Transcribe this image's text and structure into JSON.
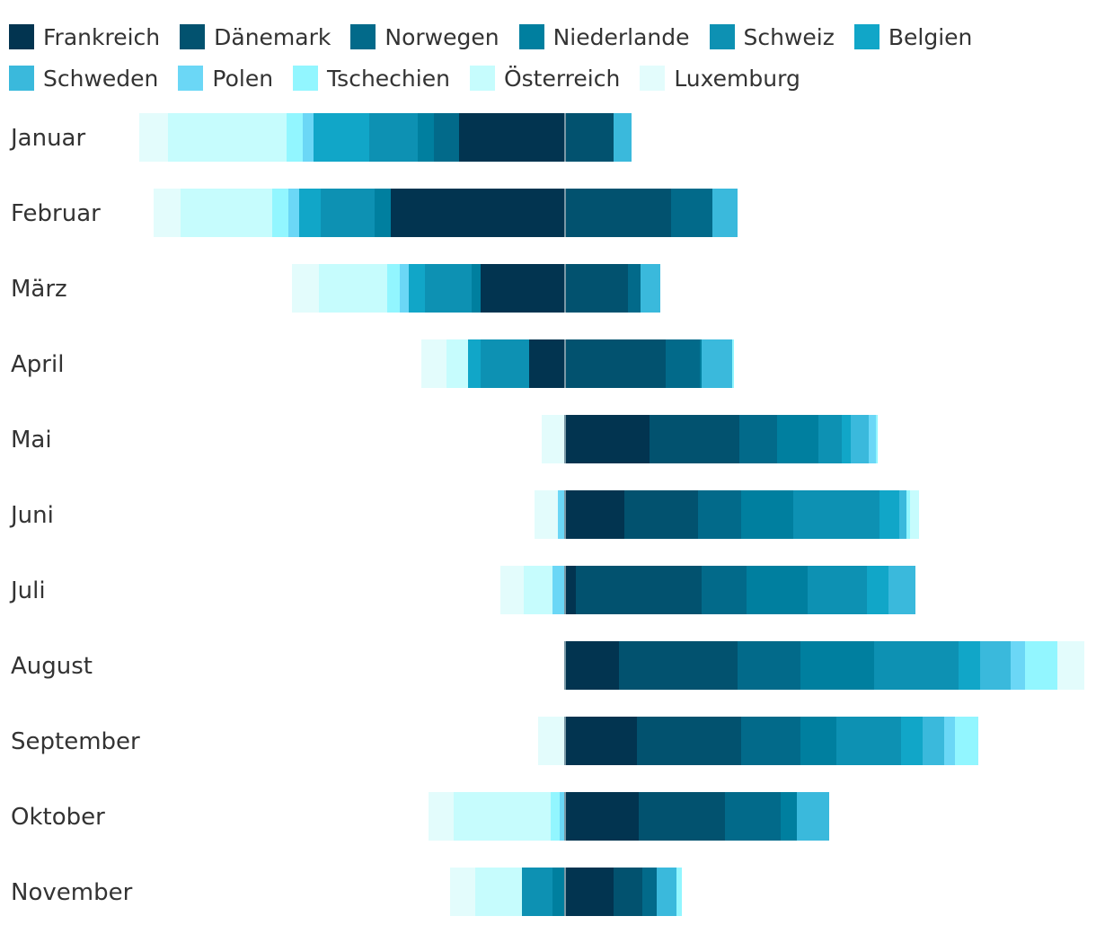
{
  "chart_data": {
    "type": "bar",
    "orientation": "horizontal",
    "stacking": "diverging",
    "title": "",
    "xlabel": "",
    "ylabel": "",
    "xlim": [
      -245,
      290
    ],
    "legend_position": "top",
    "categories": [
      "Januar",
      "Februar",
      "März",
      "April",
      "Mai",
      "Juni",
      "Juli",
      "August",
      "September",
      "Oktober",
      "November"
    ],
    "series": [
      {
        "name": "Frankreich",
        "color": "#023450",
        "values": [
          -59,
          -97,
          -47,
          -20,
          47,
          33,
          6,
          30,
          40,
          41,
          27
        ]
      },
      {
        "name": "Dänemark",
        "color": "#02526f",
        "values": [
          27,
          59,
          35,
          56,
          50,
          41,
          70,
          66,
          58,
          48,
          16
        ]
      },
      {
        "name": "Norwegen",
        "color": "#026a8a",
        "values": [
          -14,
          23,
          7,
          19,
          21,
          24,
          25,
          35,
          33,
          31,
          8
        ]
      },
      {
        "name": "Niederlande",
        "color": "#007f9f",
        "values": [
          -9,
          -9,
          -5,
          1,
          23,
          29,
          34,
          41,
          20,
          9,
          -7
        ]
      },
      {
        "name": "Schweiz",
        "color": "#0d91b3",
        "values": [
          -27,
          -30,
          -26,
          -27,
          13,
          48,
          33,
          47,
          36,
          0,
          -17
        ]
      },
      {
        "name": "Belgien",
        "color": "#11a6c8",
        "values": [
          -31,
          -12,
          -9,
          -7,
          5,
          11,
          12,
          12,
          12,
          0,
          0
        ]
      },
      {
        "name": "Schweden",
        "color": "#3ab9dc",
        "values": [
          10,
          14,
          11,
          17,
          10,
          4,
          15,
          17,
          12,
          18,
          11
        ]
      },
      {
        "name": "Polen",
        "color": "#6bd7f6",
        "values": [
          -6,
          -6,
          -5,
          0,
          4,
          -4,
          -7,
          8,
          6,
          -3,
          0
        ]
      },
      {
        "name": "Tschechien",
        "color": "#92f6ff",
        "values": [
          -9,
          -9,
          -7,
          1,
          1,
          2,
          0,
          18,
          13,
          -5,
          3
        ]
      },
      {
        "name": "Österreich",
        "color": "#c6fcfd",
        "values": [
          -66,
          -51,
          -38,
          -12,
          0,
          5,
          -16,
          0,
          0,
          -54,
          -26
        ]
      },
      {
        "name": "Luxemburg",
        "color": "#e3fcfc",
        "values": [
          -16,
          -15,
          -15,
          -14,
          -13,
          -13,
          -13,
          15,
          -15,
          -14,
          -14
        ]
      }
    ]
  }
}
